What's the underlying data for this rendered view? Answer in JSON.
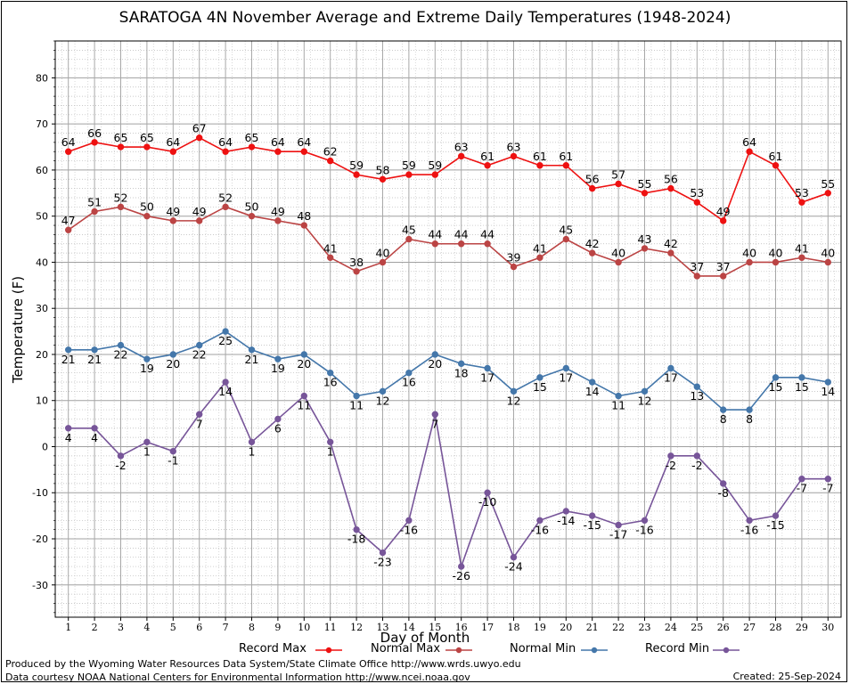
{
  "chart_data": {
    "type": "line",
    "title": "SARATOGA 4N November Average and Extreme Daily Temperatures (1948-2024)",
    "xlabel": "Day of Month",
    "ylabel": "Temperature (F)",
    "ylim": [
      -37,
      88
    ],
    "xlim": [
      0.5,
      30.5
    ],
    "yticks": [
      -30,
      -20,
      -10,
      0,
      10,
      20,
      30,
      40,
      50,
      60,
      70,
      80
    ],
    "x": [
      1,
      2,
      3,
      4,
      5,
      6,
      7,
      8,
      9,
      10,
      11,
      12,
      13,
      14,
      15,
      16,
      17,
      18,
      19,
      20,
      21,
      22,
      23,
      24,
      25,
      26,
      27,
      28,
      29,
      30
    ],
    "grid": true,
    "legend_position": "bottom",
    "series": [
      {
        "name": "Record Max",
        "color": "#ee1111",
        "label_pos": "above",
        "values": [
          64,
          66,
          65,
          65,
          64,
          67,
          64,
          65,
          64,
          64,
          62,
          59,
          58,
          59,
          59,
          63,
          61,
          63,
          61,
          61,
          56,
          57,
          55,
          56,
          53,
          49,
          64,
          61,
          53,
          55
        ]
      },
      {
        "name": "Normal Max",
        "color": "#bb4444",
        "label_pos": "above",
        "values": [
          47,
          51,
          52,
          50,
          49,
          49,
          52,
          50,
          49,
          48,
          41,
          38,
          40,
          45,
          44,
          44,
          44,
          39,
          41,
          45,
          42,
          40,
          43,
          42,
          37,
          37,
          40,
          40,
          41,
          40
        ]
      },
      {
        "name": "Normal Min",
        "color": "#4477aa",
        "label_pos": "below",
        "values": [
          21,
          21,
          22,
          19,
          20,
          22,
          25,
          21,
          19,
          20,
          16,
          11,
          12,
          16,
          20,
          18,
          17,
          12,
          15,
          17,
          14,
          11,
          12,
          17,
          13,
          8,
          8,
          15,
          15,
          14
        ]
      },
      {
        "name": "Record Min",
        "color": "#775599",
        "label_pos": "below",
        "values": [
          4,
          4,
          -2,
          1,
          -1,
          7,
          14,
          1,
          6,
          11,
          1,
          -18,
          -23,
          -16,
          7,
          -26,
          -10,
          -24,
          -16,
          -14,
          -15,
          -17,
          -16,
          -2,
          -2,
          -8,
          -16,
          -15,
          -7,
          -7
        ]
      }
    ]
  },
  "footer": {
    "produced_by": "Produced by the Wyoming Water Resources Data System/State Climate Office http://www.wrds.uwyo.edu",
    "courtesy": "Data courtesy NOAA National Centers for Environmental Information http://www.ncei.noaa.gov",
    "created": "Created:  25-Sep-2024"
  }
}
